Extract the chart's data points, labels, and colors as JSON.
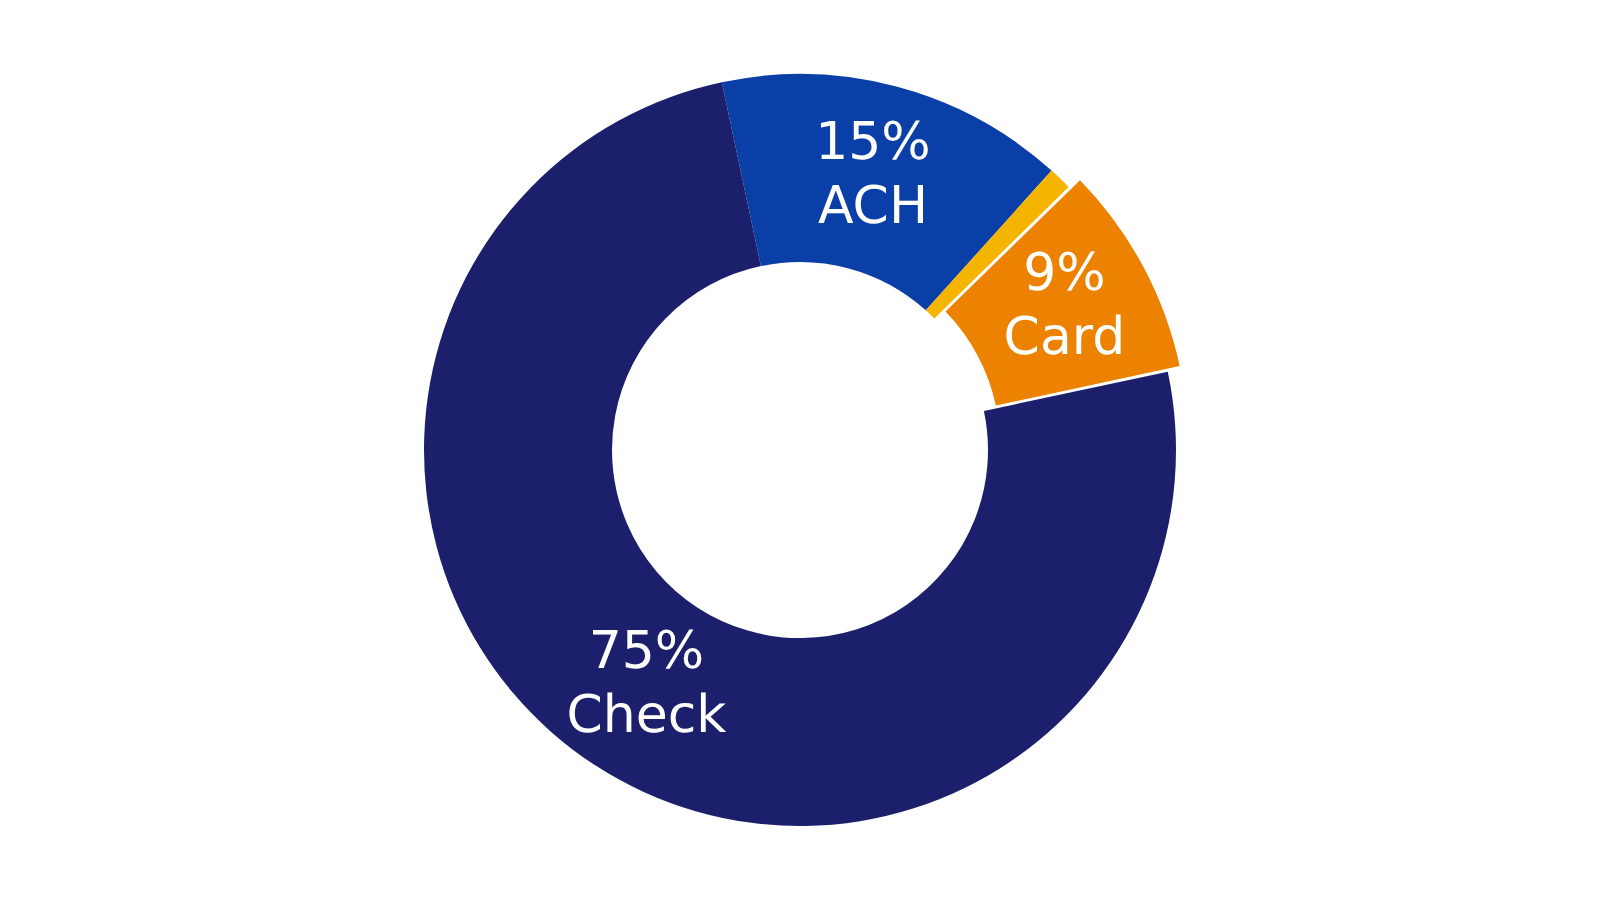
{
  "chart_data": {
    "type": "donut",
    "categories": [
      "ACH",
      null,
      "Card",
      "Check"
    ],
    "values": [
      15,
      1,
      9,
      75
    ],
    "colors": [
      "#0a3fa8",
      "#f5b400",
      "#ec8200",
      "#1c1f6b"
    ],
    "value_labels": [
      "15%",
      null,
      "9%",
      "75%"
    ],
    "legend": false
  }
}
